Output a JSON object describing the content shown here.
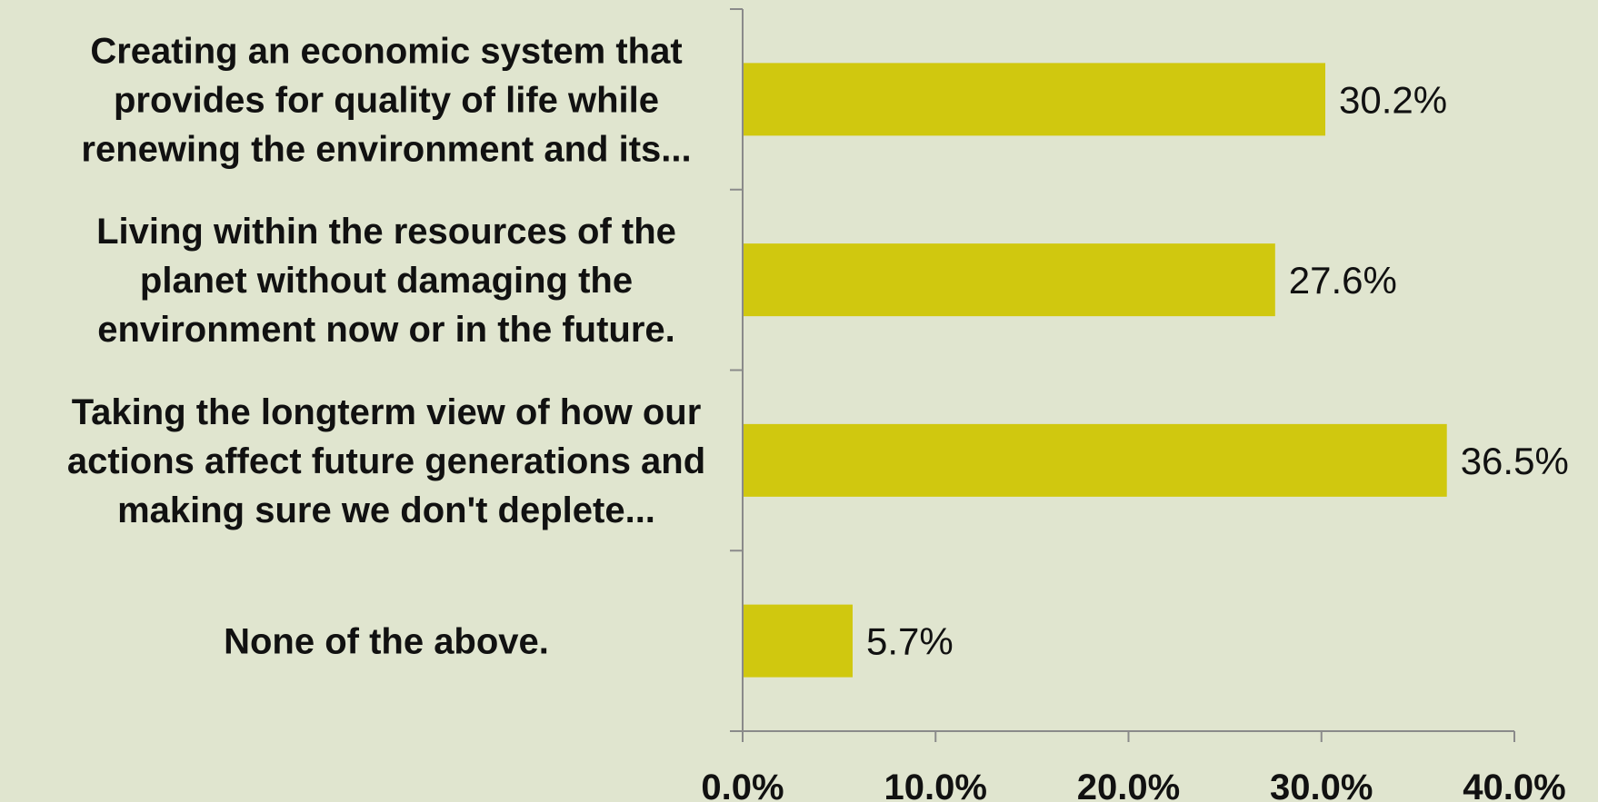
{
  "chart_data": {
    "type": "bar",
    "orientation": "horizontal",
    "categories": [
      [
        "Creating an economic system that",
        "provides for quality of life while",
        "renewing the environment and its..."
      ],
      [
        "Living within the resources of the",
        "planet without damaging the",
        "environment now or in the future."
      ],
      [
        "Taking the longterm view of how our",
        "actions affect future generations and",
        "making sure we don't deplete..."
      ],
      [
        "None of the above."
      ]
    ],
    "values": [
      30.2,
      27.6,
      36.5,
      5.7
    ],
    "data_labels": [
      "30.2%",
      "27.6%",
      "36.5%",
      "5.7%"
    ],
    "xlim": [
      0,
      40
    ],
    "xticks": [
      0,
      10,
      20,
      30,
      40
    ],
    "xtick_labels": [
      "0.0%",
      "10.0%",
      "20.0%",
      "30.0%",
      "40.0%"
    ],
    "title": "",
    "xlabel": "",
    "ylabel": "",
    "grid": false,
    "legend": "none",
    "colors": {
      "bar": "#d0c80f",
      "axis": "#8a8a8a",
      "text": "#111111",
      "background": "#e0e5cf"
    }
  }
}
